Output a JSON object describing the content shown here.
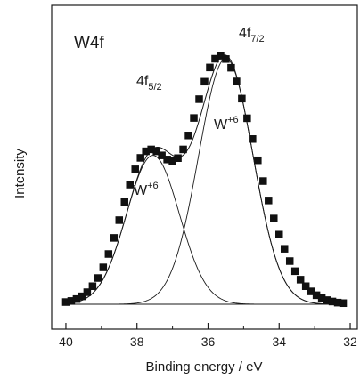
{
  "chart_data": {
    "type": "line",
    "title": "",
    "panel_label": "W4f",
    "xlabel": "Binding energy / eV",
    "ylabel": "Intensity",
    "xlim": [
      40.4,
      31.8
    ],
    "ylim": [
      0,
      1.0
    ],
    "x_reversed": true,
    "xticks": [
      40,
      38,
      36,
      34,
      32
    ],
    "grid": false,
    "legend": "none",
    "series": [
      {
        "role": "measured",
        "marker": "square",
        "x": [
          40.0,
          39.85,
          39.7,
          39.55,
          39.4,
          39.25,
          39.1,
          38.95,
          38.8,
          38.65,
          38.5,
          38.35,
          38.2,
          38.05,
          37.9,
          37.75,
          37.6,
          37.45,
          37.3,
          37.15,
          37.0,
          36.85,
          36.7,
          36.55,
          36.4,
          36.25,
          36.1,
          35.95,
          35.8,
          35.65,
          35.5,
          35.35,
          35.2,
          35.05,
          34.9,
          34.75,
          34.6,
          34.45,
          34.3,
          34.15,
          34.0,
          33.85,
          33.7,
          33.55,
          33.4,
          33.25,
          33.1,
          32.95,
          32.8,
          32.65,
          32.5,
          32.35,
          32.2
        ],
        "y": [
          0.008,
          0.012,
          0.019,
          0.029,
          0.044,
          0.066,
          0.096,
          0.135,
          0.184,
          0.243,
          0.308,
          0.375,
          0.438,
          0.494,
          0.536,
          0.56,
          0.567,
          0.56,
          0.545,
          0.53,
          0.524,
          0.535,
          0.567,
          0.618,
          0.682,
          0.751,
          0.815,
          0.867,
          0.899,
          0.91,
          0.898,
          0.866,
          0.816,
          0.753,
          0.681,
          0.605,
          0.527,
          0.451,
          0.38,
          0.314,
          0.255,
          0.203,
          0.158,
          0.121,
          0.09,
          0.066,
          0.047,
          0.033,
          0.022,
          0.015,
          0.01,
          0.006,
          0.004
        ]
      },
      {
        "role": "fit",
        "name": "4f5/2 component",
        "peak_label": "W",
        "peak_superscript": "+6",
        "center": 37.55,
        "amplitude": 0.545,
        "fwhm": 1.75
      },
      {
        "role": "fit",
        "name": "4f7/2 component",
        "peak_label": "W",
        "peak_superscript": "+6",
        "center": 35.5,
        "amplitude": 0.9,
        "fwhm": 1.8
      }
    ],
    "annotations": [
      {
        "main": "4f",
        "sub": "5/2"
      },
      {
        "main": "4f",
        "sub": "7/2"
      }
    ]
  }
}
